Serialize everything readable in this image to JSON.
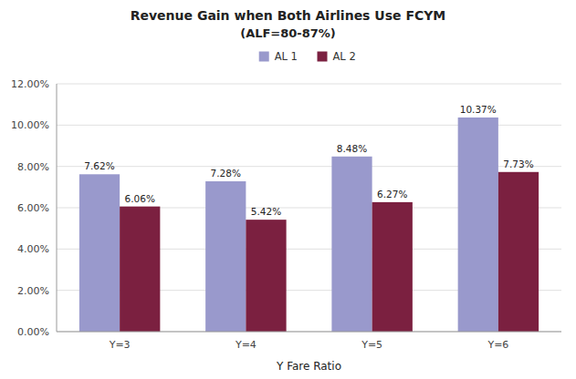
{
  "chart_data": {
    "type": "bar",
    "title": "Revenue Gain when Both Airlines Use FCYM",
    "subtitle": "(ALF=80-87%)",
    "xlabel": "Y Fare Ratio",
    "categories": [
      "Y=3",
      "Y=4",
      "Y=5",
      "Y=6"
    ],
    "series": [
      {
        "name": "AL 1",
        "color": "#9999CC",
        "values": [
          7.62,
          7.28,
          8.48,
          10.37
        ],
        "value_labels": [
          "7.62%",
          "7.28%",
          "8.48%",
          "10.37%"
        ]
      },
      {
        "name": "AL 2",
        "color": "#7B2040",
        "values": [
          6.06,
          5.42,
          6.27,
          7.73
        ],
        "value_labels": [
          "6.06%",
          "5.42%",
          "6.27%",
          "7.73%"
        ]
      }
    ],
    "ylim": [
      0,
      12.0
    ],
    "yticks": [
      {
        "value": 0,
        "label": "0.00%"
      },
      {
        "value": 2,
        "label": "2.00%"
      },
      {
        "value": 4,
        "label": "4.00%"
      },
      {
        "value": 6,
        "label": "6.00%"
      },
      {
        "value": 8,
        "label": "8.00%"
      },
      {
        "value": 10,
        "label": "10.00%"
      },
      {
        "value": 12,
        "label": "12.00%"
      }
    ],
    "grid": true,
    "legend": "top",
    "data_labels": true
  }
}
